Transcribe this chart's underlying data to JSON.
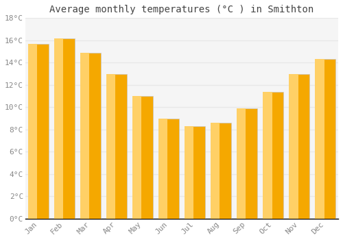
{
  "title": "Average monthly temperatures (°C ) in Smithton",
  "months": [
    "Jan",
    "Feb",
    "Mar",
    "Apr",
    "May",
    "Jun",
    "Jul",
    "Aug",
    "Sep",
    "Oct",
    "Nov",
    "Dec"
  ],
  "values": [
    15.7,
    16.2,
    14.9,
    13.0,
    11.0,
    9.0,
    8.3,
    8.6,
    9.9,
    11.4,
    13.0,
    14.3
  ],
  "bar_color_left": "#FFD066",
  "bar_color_right": "#F5A800",
  "bar_edge_color": "#C8C8C8",
  "ylim": [
    0,
    18
  ],
  "yticks": [
    0,
    2,
    4,
    6,
    8,
    10,
    12,
    14,
    16,
    18
  ],
  "ytick_labels": [
    "0°C",
    "2°C",
    "4°C",
    "6°C",
    "8°C",
    "10°C",
    "12°C",
    "14°C",
    "16°C",
    "18°C"
  ],
  "background_color": "#ffffff",
  "plot_bg_color": "#f5f5f5",
  "grid_color": "#e8e8e8",
  "title_fontsize": 10,
  "tick_fontsize": 8,
  "tick_color": "#888888",
  "title_color": "#444444",
  "bar_width": 0.78
}
